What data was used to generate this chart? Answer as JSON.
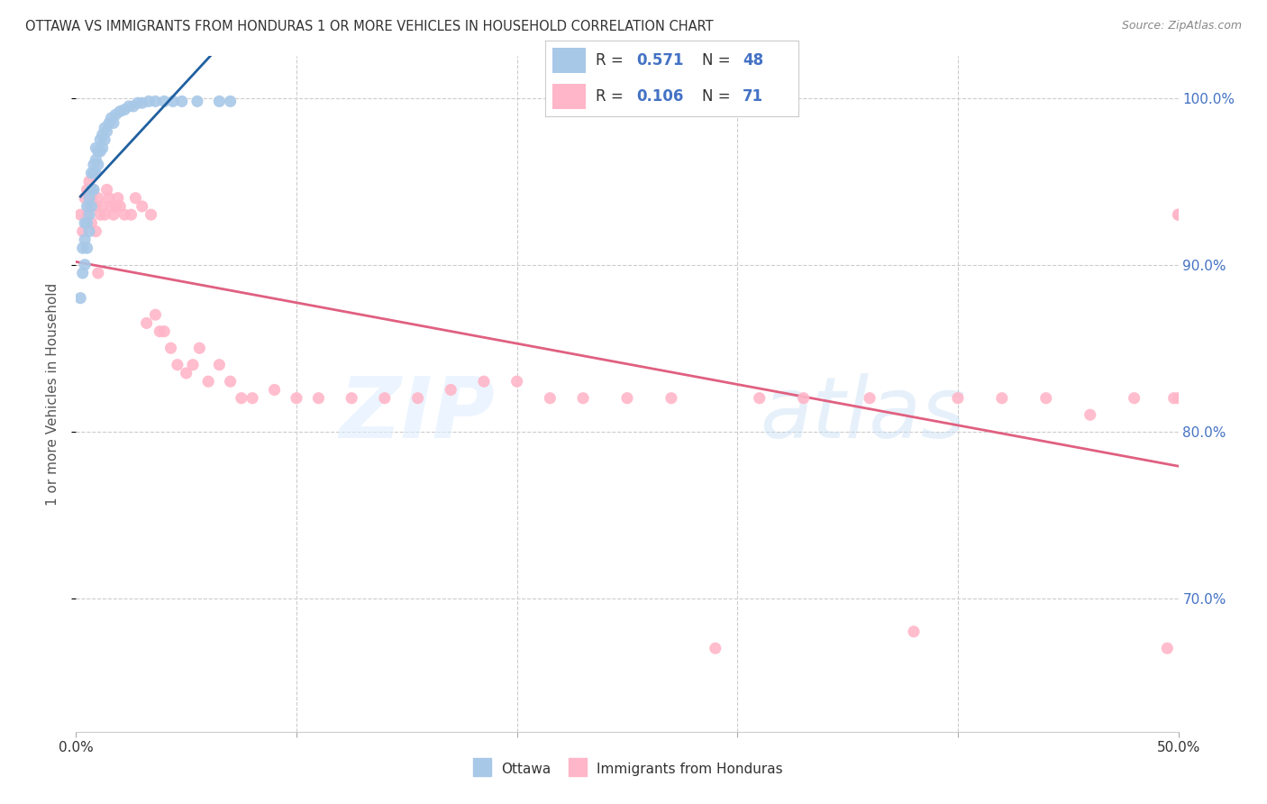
{
  "title": "OTTAWA VS IMMIGRANTS FROM HONDURAS 1 OR MORE VEHICLES IN HOUSEHOLD CORRELATION CHART",
  "source": "Source: ZipAtlas.com",
  "ylabel": "1 or more Vehicles in Household",
  "ytick_labels": [
    "100.0%",
    "90.0%",
    "80.0%",
    "70.0%"
  ],
  "ytick_values": [
    1.0,
    0.9,
    0.8,
    0.7
  ],
  "xlim": [
    0.0,
    0.5
  ],
  "ylim": [
    0.62,
    1.025
  ],
  "legend_R_ottawa": "0.571",
  "legend_N_ottawa": "48",
  "legend_R_honduras": "0.106",
  "legend_N_honduras": "71",
  "ottawa_color": "#a8c8e8",
  "honduras_color": "#ffb6c8",
  "trendline_ottawa_color": "#2060a0",
  "trendline_honduras_color": "#e06080",
  "ottawa_x": [
    0.002,
    0.003,
    0.003,
    0.004,
    0.004,
    0.004,
    0.005,
    0.005,
    0.005,
    0.006,
    0.006,
    0.006,
    0.007,
    0.007,
    0.007,
    0.008,
    0.008,
    0.008,
    0.009,
    0.009,
    0.009,
    0.01,
    0.01,
    0.011,
    0.011,
    0.012,
    0.012,
    0.013,
    0.013,
    0.014,
    0.015,
    0.016,
    0.017,
    0.018,
    0.02,
    0.022,
    0.024,
    0.026,
    0.028,
    0.03,
    0.033,
    0.036,
    0.04,
    0.044,
    0.048,
    0.055,
    0.065,
    0.07
  ],
  "ottawa_y": [
    0.88,
    0.895,
    0.91,
    0.9,
    0.915,
    0.925,
    0.91,
    0.925,
    0.935,
    0.92,
    0.93,
    0.94,
    0.935,
    0.945,
    0.955,
    0.945,
    0.955,
    0.96,
    0.955,
    0.963,
    0.97,
    0.96,
    0.968,
    0.968,
    0.975,
    0.97,
    0.978,
    0.975,
    0.982,
    0.98,
    0.985,
    0.988,
    0.985,
    0.99,
    0.992,
    0.993,
    0.995,
    0.995,
    0.997,
    0.997,
    0.998,
    0.998,
    0.998,
    0.998,
    0.998,
    0.998,
    0.998,
    0.998
  ],
  "honduras_x": [
    0.002,
    0.003,
    0.004,
    0.005,
    0.005,
    0.006,
    0.006,
    0.007,
    0.007,
    0.008,
    0.009,
    0.009,
    0.01,
    0.01,
    0.011,
    0.012,
    0.013,
    0.014,
    0.015,
    0.016,
    0.017,
    0.018,
    0.019,
    0.02,
    0.022,
    0.025,
    0.027,
    0.03,
    0.032,
    0.034,
    0.036,
    0.038,
    0.04,
    0.043,
    0.046,
    0.05,
    0.053,
    0.056,
    0.06,
    0.065,
    0.07,
    0.075,
    0.08,
    0.09,
    0.1,
    0.11,
    0.125,
    0.14,
    0.155,
    0.17,
    0.185,
    0.2,
    0.215,
    0.23,
    0.25,
    0.27,
    0.29,
    0.31,
    0.33,
    0.36,
    0.38,
    0.4,
    0.42,
    0.44,
    0.46,
    0.48,
    0.495,
    0.498,
    0.5,
    0.5,
    0.5
  ],
  "honduras_y": [
    0.93,
    0.92,
    0.94,
    0.93,
    0.945,
    0.935,
    0.95,
    0.925,
    0.94,
    0.945,
    0.92,
    0.935,
    0.94,
    0.895,
    0.93,
    0.935,
    0.93,
    0.945,
    0.94,
    0.935,
    0.93,
    0.935,
    0.94,
    0.935,
    0.93,
    0.93,
    0.94,
    0.935,
    0.865,
    0.93,
    0.87,
    0.86,
    0.86,
    0.85,
    0.84,
    0.835,
    0.84,
    0.85,
    0.83,
    0.84,
    0.83,
    0.82,
    0.82,
    0.825,
    0.82,
    0.82,
    0.82,
    0.82,
    0.82,
    0.825,
    0.83,
    0.83,
    0.82,
    0.82,
    0.82,
    0.82,
    0.67,
    0.82,
    0.82,
    0.82,
    0.68,
    0.82,
    0.82,
    0.82,
    0.81,
    0.82,
    0.67,
    0.82,
    0.82,
    0.93,
    0.93
  ]
}
